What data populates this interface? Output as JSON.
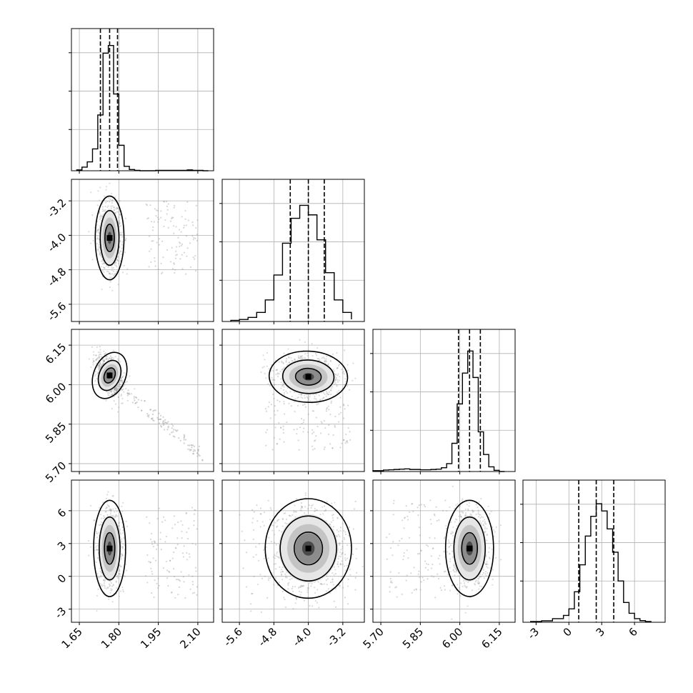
{
  "chart_data": {
    "type": "corner",
    "params": [
      {
        "range": [
          1.62,
          2.16
        ],
        "ticks": [
          "1.65",
          "1.80",
          "1.95",
          "2.10"
        ],
        "quantiles": [
          1.73,
          1.765,
          1.795
        ],
        "hist_edges": [
          1.64,
          1.66,
          1.68,
          1.7,
          1.72,
          1.74,
          1.76,
          1.78,
          1.8,
          1.82,
          1.84,
          1.86,
          1.88,
          1.9,
          1.92,
          1.94,
          1.96,
          1.98,
          2.0,
          2.02,
          2.04,
          2.06,
          2.08,
          2.1,
          2.12,
          2.14
        ],
        "hist_counts": [
          2,
          9,
          22,
          54,
          138,
          291,
          310,
          190,
          63,
          11,
          3,
          1,
          0,
          0,
          0,
          1,
          1,
          1,
          1,
          1,
          1,
          2,
          1,
          1,
          0
        ],
        "hist_ylim": [
          0,
          320
        ],
        "mode": 1.765
      },
      {
        "range": [
          -6.0,
          -2.7
        ],
        "ticks": [
          "-5.6",
          "-4.8",
          "-4.0",
          "-3.2"
        ],
        "quantiles": [
          -4.42,
          -4.0,
          -3.63
        ],
        "hist_edges": [
          -5.8,
          -5.6,
          -5.4,
          -5.2,
          -5.0,
          -4.8,
          -4.6,
          -4.4,
          -4.2,
          -4.0,
          -3.8,
          -3.6,
          -3.4,
          -3.2,
          -3.0
        ],
        "hist_counts": [
          5,
          9,
          18,
          40,
          95,
          205,
          345,
          455,
          512,
          470,
          360,
          215,
          95,
          40,
          10
        ],
        "hist_ylim": [
          0,
          570
        ],
        "mode": -4.0
      },
      {
        "range": [
          5.67,
          6.21
        ],
        "ticks": [
          "5.70",
          "5.85",
          "6.00",
          "6.15"
        ],
        "quantiles": [
          5.995,
          6.037,
          6.078
        ],
        "hist_edges": [
          5.67,
          5.69,
          5.71,
          5.73,
          5.75,
          5.77,
          5.79,
          5.81,
          5.83,
          5.85,
          5.87,
          5.89,
          5.91,
          5.93,
          5.95,
          5.97,
          5.99,
          6.01,
          6.03,
          6.05,
          6.07,
          6.09,
          6.11,
          6.13,
          6.15,
          6.17
        ],
        "hist_counts": [
          3,
          3,
          5,
          6,
          7,
          8,
          9,
          7,
          7,
          6,
          6,
          7,
          8,
          13,
          27,
          96,
          230,
          335,
          410,
          320,
          135,
          58,
          16,
          4,
          0
        ],
        "hist_ylim": [
          0,
          440
        ],
        "mode": 6.04
      },
      {
        "range": [
          -4.2,
          8.8
        ],
        "ticks": [
          "-3",
          "0",
          "3",
          "6"
        ],
        "quantiles": [
          0.9,
          2.5,
          4.1
        ],
        "hist_edges": [
          -3.5,
          -2.5,
          -1.5,
          -0.5,
          0.0,
          0.5,
          1.0,
          1.5,
          2.0,
          2.5,
          3.0,
          3.5,
          4.0,
          4.5,
          5.0,
          5.5,
          6.0,
          6.5,
          7.0,
          7.5
        ],
        "hist_counts": [
          4,
          8,
          20,
          38,
          75,
          170,
          320,
          480,
          590,
          660,
          620,
          520,
          390,
          230,
          110,
          50,
          20,
          9,
          4
        ],
        "hist_ylim": [
          0,
          720
        ],
        "mode": 2.5
      }
    ],
    "pairs": [
      {
        "row": 1,
        "col": 0,
        "center": [
          1.765,
          -4.06
        ],
        "sigma": [
          0.018,
          0.32
        ],
        "rho": 0.0,
        "outliers": [
          [
            1.9,
            2.1
          ],
          [
            -4.9,
            -3.2
          ]
        ]
      },
      {
        "row": 2,
        "col": 0,
        "center": [
          1.765,
          6.035
        ],
        "sigma": [
          0.02,
          0.03
        ],
        "rho": -0.5,
        "outliers": [
          [
            1.9,
            2.1
          ],
          [
            5.73,
            5.9
          ]
        ]
      },
      {
        "row": 2,
        "col": 1,
        "center": [
          -4.0,
          6.03
        ],
        "sigma": [
          0.3,
          0.032
        ],
        "rho": -0.1,
        "outliers": [
          [
            -5.0,
            -3.0
          ],
          [
            5.75,
            5.95
          ]
        ]
      },
      {
        "row": 3,
        "col": 0,
        "center": [
          1.765,
          2.55
        ],
        "sigma": [
          0.02,
          1.45
        ],
        "rho": 0.0,
        "outliers": [
          [
            1.9,
            2.1
          ],
          [
            -2.0,
            6.5
          ]
        ]
      },
      {
        "row": 3,
        "col": 1,
        "center": [
          -4.0,
          2.55
        ],
        "sigma": [
          0.33,
          1.5
        ],
        "rho": 0.0,
        "outliers": [
          [
            -5.6,
            -2.9
          ],
          [
            -3.5,
            7.0
          ]
        ]
      },
      {
        "row": 3,
        "col": 2,
        "center": [
          6.037,
          2.55
        ],
        "sigma": [
          0.03,
          1.45
        ],
        "rho": 0.0,
        "outliers": [
          [
            5.72,
            5.95
          ],
          [
            -2.0,
            7.0
          ]
        ]
      }
    ],
    "grid": true,
    "contour_levels": [
      0.39,
      0.86,
      0.99
    ]
  }
}
